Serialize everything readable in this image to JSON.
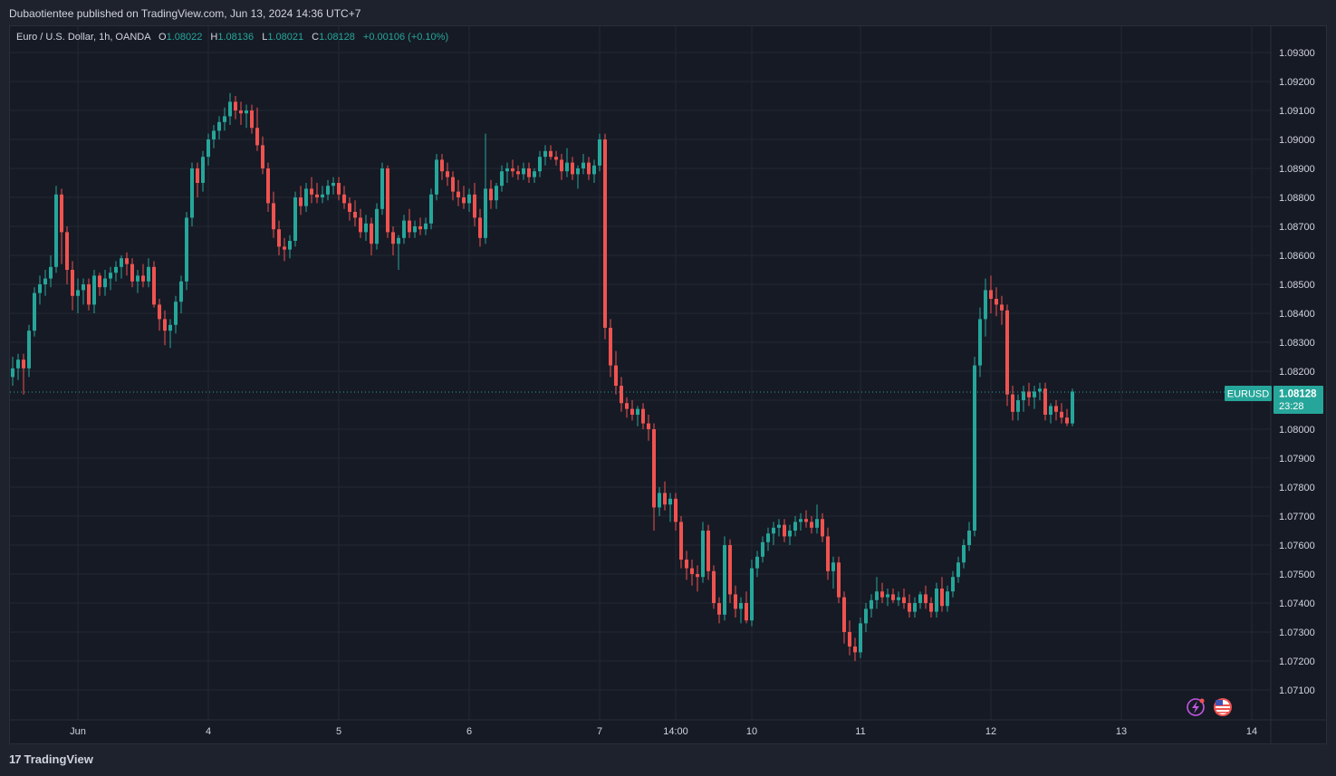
{
  "header": {
    "publisher_line": "Dubaotientee published on TradingView.com, Jun 13, 2024 14:36 UTC+7"
  },
  "legend": {
    "symbol": "Euro / U.S. Dollar, 1h, OANDA",
    "open_label": "O",
    "open": "1.08022",
    "high_label": "H",
    "high": "1.08136",
    "low_label": "L",
    "low": "1.08021",
    "close_label": "C",
    "close": "1.08128",
    "change": "+0.00106 (+0.10%)"
  },
  "price_tag": {
    "ticker": "EURUSD",
    "price": "1.08128",
    "countdown": "23:28"
  },
  "footer": {
    "brand": "TradingView"
  },
  "colors": {
    "up": "#26a69a",
    "down": "#ef5350",
    "background": "#161a25",
    "grid": "#242833",
    "text": "#d1d4dc"
  },
  "icons": [
    "lightning-icon",
    "us-flag-icon",
    "tradingview-logo-icon"
  ],
  "chart_data": {
    "type": "candlestick",
    "symbol": "EURUSD",
    "interval": "1h",
    "ylim": [
      1.07,
      1.0935
    ],
    "y_ticks": [
      "1.07100",
      "1.07200",
      "1.07300",
      "1.07400",
      "1.07500",
      "1.07600",
      "1.07700",
      "1.07800",
      "1.07900",
      "1.08000",
      "1.08100",
      "1.08200",
      "1.08300",
      "1.08400",
      "1.08500",
      "1.08600",
      "1.08700",
      "1.08800",
      "1.08900",
      "1.09000",
      "1.09100",
      "1.09200",
      "1.09300"
    ],
    "x_ticks": [
      {
        "label": "Jun",
        "bar": 12
      },
      {
        "label": "4",
        "bar": 36
      },
      {
        "label": "5",
        "bar": 60
      },
      {
        "label": "6",
        "bar": 84
      },
      {
        "label": "7",
        "bar": 108
      },
      {
        "label": "14:00",
        "bar": 122
      },
      {
        "label": "10",
        "bar": 136
      },
      {
        "label": "11",
        "bar": 156
      },
      {
        "label": "12",
        "bar": 180
      },
      {
        "label": "13",
        "bar": 204
      },
      {
        "label": "14",
        "bar": 228
      }
    ],
    "last_price": 1.08128,
    "grid": true,
    "candles": [
      [
        1.0818,
        1.0825,
        1.0815,
        1.0821
      ],
      [
        1.0821,
        1.0826,
        1.0817,
        1.0824
      ],
      [
        1.0824,
        1.0826,
        1.0812,
        1.0821
      ],
      [
        1.0821,
        1.0836,
        1.0818,
        1.0834
      ],
      [
        1.0834,
        1.0849,
        1.0832,
        1.0847
      ],
      [
        1.0847,
        1.0853,
        1.0843,
        1.085
      ],
      [
        1.085,
        1.0855,
        1.0846,
        1.0852
      ],
      [
        1.0852,
        1.086,
        1.0849,
        1.0856
      ],
      [
        1.0856,
        1.0884,
        1.0854,
        1.0881
      ],
      [
        1.0881,
        1.0883,
        1.0857,
        1.0868
      ],
      [
        1.0868,
        1.087,
        1.085,
        1.0855
      ],
      [
        1.0855,
        1.0858,
        1.0841,
        1.0846
      ],
      [
        1.0846,
        1.0852,
        1.084,
        1.0848
      ],
      [
        1.0848,
        1.0852,
        1.0843,
        1.085
      ],
      [
        1.085,
        1.0852,
        1.0841,
        1.0843
      ],
      [
        1.0843,
        1.0855,
        1.084,
        1.0853
      ],
      [
        1.0853,
        1.0854,
        1.0846,
        1.0849
      ],
      [
        1.0849,
        1.0855,
        1.0846,
        1.0852
      ],
      [
        1.0852,
        1.0856,
        1.0848,
        1.0854
      ],
      [
        1.0854,
        1.0858,
        1.0851,
        1.0856
      ],
      [
        1.0856,
        1.086,
        1.0852,
        1.0859
      ],
      [
        1.0859,
        1.0861,
        1.0853,
        1.0857
      ],
      [
        1.0857,
        1.0859,
        1.0849,
        1.0851
      ],
      [
        1.0851,
        1.0855,
        1.0847,
        1.0853
      ],
      [
        1.0853,
        1.0857,
        1.0849,
        1.0851
      ],
      [
        1.0851,
        1.0859,
        1.0849,
        1.0856
      ],
      [
        1.0856,
        1.0858,
        1.0842,
        1.0843
      ],
      [
        1.0843,
        1.0845,
        1.0834,
        1.0838
      ],
      [
        1.0838,
        1.0841,
        1.0829,
        1.0834
      ],
      [
        1.0834,
        1.0838,
        1.0828,
        1.0836
      ],
      [
        1.0836,
        1.0846,
        1.0833,
        1.0844
      ],
      [
        1.0844,
        1.0853,
        1.084,
        1.0851
      ],
      [
        1.0851,
        1.0875,
        1.0848,
        1.0873
      ],
      [
        1.0873,
        1.0892,
        1.087,
        1.089
      ],
      [
        1.089,
        1.0892,
        1.088,
        1.0885
      ],
      [
        1.0885,
        1.0896,
        1.0882,
        1.0894
      ],
      [
        1.0894,
        1.0902,
        1.0891,
        1.09
      ],
      [
        1.09,
        1.0905,
        1.0897,
        1.0903
      ],
      [
        1.0903,
        1.0908,
        1.09,
        1.0906
      ],
      [
        1.0906,
        1.0911,
        1.0903,
        1.0908
      ],
      [
        1.0908,
        1.0916,
        1.0905,
        1.0913
      ],
      [
        1.0913,
        1.0915,
        1.0907,
        1.091
      ],
      [
        1.091,
        1.0913,
        1.0905,
        1.0909
      ],
      [
        1.0909,
        1.0912,
        1.0904,
        1.091
      ],
      [
        1.091,
        1.0912,
        1.0902,
        1.0904
      ],
      [
        1.0904,
        1.0911,
        1.0896,
        1.0898
      ],
      [
        1.0898,
        1.0901,
        1.0888,
        1.089
      ],
      [
        1.089,
        1.0892,
        1.0875,
        1.0878
      ],
      [
        1.0878,
        1.0882,
        1.0866,
        1.0869
      ],
      [
        1.0869,
        1.0872,
        1.086,
        1.0863
      ],
      [
        1.0863,
        1.0866,
        1.0858,
        1.0862
      ],
      [
        1.0862,
        1.0867,
        1.0859,
        1.0865
      ],
      [
        1.0865,
        1.0882,
        1.0863,
        1.088
      ],
      [
        1.088,
        1.0884,
        1.0874,
        1.0877
      ],
      [
        1.0877,
        1.0885,
        1.0875,
        1.0883
      ],
      [
        1.0883,
        1.0887,
        1.0878,
        1.0881
      ],
      [
        1.0881,
        1.0885,
        1.0878,
        1.088
      ],
      [
        1.088,
        1.0884,
        1.0878,
        1.0881
      ],
      [
        1.0881,
        1.0886,
        1.0879,
        1.0884
      ],
      [
        1.0884,
        1.0887,
        1.0881,
        1.0885
      ],
      [
        1.0885,
        1.0887,
        1.0879,
        1.0881
      ],
      [
        1.0881,
        1.0884,
        1.0876,
        1.0878
      ],
      [
        1.0878,
        1.088,
        1.0872,
        1.0875
      ],
      [
        1.0875,
        1.0879,
        1.087,
        1.0873
      ],
      [
        1.0873,
        1.0876,
        1.0866,
        1.0868
      ],
      [
        1.0868,
        1.0874,
        1.0865,
        1.0871
      ],
      [
        1.0871,
        1.0873,
        1.086,
        1.0864
      ],
      [
        1.0864,
        1.0878,
        1.0862,
        1.0876
      ],
      [
        1.0876,
        1.0892,
        1.0874,
        1.089
      ],
      [
        1.089,
        1.0891,
        1.0866,
        1.0868
      ],
      [
        1.0868,
        1.087,
        1.086,
        1.0864
      ],
      [
        1.0864,
        1.0867,
        1.0855,
        1.0866
      ],
      [
        1.0866,
        1.0874,
        1.0864,
        1.0872
      ],
      [
        1.0872,
        1.0876,
        1.0866,
        1.0868
      ],
      [
        1.0868,
        1.0872,
        1.0866,
        1.087
      ],
      [
        1.087,
        1.0873,
        1.0867,
        1.0869
      ],
      [
        1.0869,
        1.0873,
        1.0867,
        1.0871
      ],
      [
        1.0871,
        1.0883,
        1.0869,
        1.0881
      ],
      [
        1.0881,
        1.0895,
        1.0879,
        1.0893
      ],
      [
        1.0893,
        1.0895,
        1.0886,
        1.0889
      ],
      [
        1.0889,
        1.0892,
        1.0884,
        1.0887
      ],
      [
        1.0887,
        1.0889,
        1.0879,
        1.0882
      ],
      [
        1.0882,
        1.0886,
        1.0877,
        1.088
      ],
      [
        1.088,
        1.0884,
        1.0876,
        1.0878
      ],
      [
        1.0878,
        1.0883,
        1.0875,
        1.0881
      ],
      [
        1.0881,
        1.0885,
        1.087,
        1.0873
      ],
      [
        1.0873,
        1.0876,
        1.0863,
        1.0866
      ],
      [
        1.0866,
        1.0902,
        1.0864,
        1.0883
      ],
      [
        1.0883,
        1.0886,
        1.0876,
        1.0879
      ],
      [
        1.0879,
        1.0885,
        1.0876,
        1.0884
      ],
      [
        1.0884,
        1.0891,
        1.0882,
        1.0889
      ],
      [
        1.0889,
        1.0892,
        1.0885,
        1.089
      ],
      [
        1.089,
        1.0893,
        1.0887,
        1.0889
      ],
      [
        1.0889,
        1.0891,
        1.0886,
        1.0888
      ],
      [
        1.0888,
        1.0892,
        1.0886,
        1.089
      ],
      [
        1.089,
        1.0892,
        1.0885,
        1.0887
      ],
      [
        1.0887,
        1.089,
        1.0885,
        1.0889
      ],
      [
        1.0889,
        1.0896,
        1.0887,
        1.0894
      ],
      [
        1.0894,
        1.0898,
        1.0891,
        1.0896
      ],
      [
        1.0896,
        1.0898,
        1.0893,
        1.0894
      ],
      [
        1.0894,
        1.0896,
        1.0891,
        1.0893
      ],
      [
        1.0893,
        1.0895,
        1.0886,
        1.0889
      ],
      [
        1.0889,
        1.0897,
        1.0887,
        1.0892
      ],
      [
        1.0892,
        1.0894,
        1.0886,
        1.0888
      ],
      [
        1.0888,
        1.0891,
        1.0883,
        1.089
      ],
      [
        1.089,
        1.0895,
        1.0888,
        1.0892
      ],
      [
        1.0892,
        1.0894,
        1.0886,
        1.0888
      ],
      [
        1.0888,
        1.0893,
        1.0885,
        1.0891
      ],
      [
        1.0891,
        1.0902,
        1.0889,
        1.09
      ],
      [
        1.09,
        1.0902,
        1.0831,
        1.0835
      ],
      [
        1.0835,
        1.0838,
        1.0818,
        1.0822
      ],
      [
        1.0822,
        1.0827,
        1.0812,
        1.0815
      ],
      [
        1.0815,
        1.0818,
        1.0806,
        1.0809
      ],
      [
        1.0809,
        1.0811,
        1.0804,
        1.0807
      ],
      [
        1.0807,
        1.081,
        1.0803,
        1.0805
      ],
      [
        1.0805,
        1.0808,
        1.0801,
        1.0807
      ],
      [
        1.0807,
        1.0809,
        1.08,
        1.0802
      ],
      [
        1.0802,
        1.0805,
        1.0796,
        1.08
      ],
      [
        1.08,
        1.0802,
        1.0765,
        1.0773
      ],
      [
        1.0773,
        1.078,
        1.077,
        1.0778
      ],
      [
        1.0778,
        1.0782,
        1.0772,
        1.0774
      ],
      [
        1.0774,
        1.0778,
        1.0768,
        1.0776
      ],
      [
        1.0776,
        1.0778,
        1.0765,
        1.0768
      ],
      [
        1.0768,
        1.077,
        1.0752,
        1.0755
      ],
      [
        1.0755,
        1.0758,
        1.0748,
        1.0752
      ],
      [
        1.0752,
        1.0755,
        1.0746,
        1.075
      ],
      [
        1.075,
        1.0753,
        1.0744,
        1.0749
      ],
      [
        1.0749,
        1.0768,
        1.0747,
        1.0765
      ],
      [
        1.0765,
        1.0767,
        1.0748,
        1.0751
      ],
      [
        1.0751,
        1.0753,
        1.0738,
        1.074
      ],
      [
        1.074,
        1.0742,
        1.0733,
        1.0736
      ],
      [
        1.0736,
        1.0763,
        1.0734,
        1.076
      ],
      [
        1.076,
        1.0762,
        1.074,
        1.0743
      ],
      [
        1.0743,
        1.0746,
        1.0735,
        1.0738
      ],
      [
        1.0738,
        1.0742,
        1.0733,
        1.074
      ],
      [
        1.074,
        1.0744,
        1.0733,
        1.0734
      ],
      [
        1.0734,
        1.0755,
        1.0732,
        1.0752
      ],
      [
        1.0752,
        1.0758,
        1.0749,
        1.0756
      ],
      [
        1.0756,
        1.0763,
        1.0754,
        1.0761
      ],
      [
        1.0761,
        1.0766,
        1.0758,
        1.0764
      ],
      [
        1.0764,
        1.0768,
        1.076,
        1.0766
      ],
      [
        1.0766,
        1.0769,
        1.0763,
        1.0767
      ],
      [
        1.0767,
        1.0769,
        1.0761,
        1.0763
      ],
      [
        1.0763,
        1.0767,
        1.076,
        1.0765
      ],
      [
        1.0765,
        1.077,
        1.0763,
        1.0768
      ],
      [
        1.0768,
        1.0771,
        1.0765,
        1.0769
      ],
      [
        1.0769,
        1.0772,
        1.0766,
        1.0768
      ],
      [
        1.0768,
        1.077,
        1.0764,
        1.0766
      ],
      [
        1.0766,
        1.0774,
        1.0764,
        1.0769
      ],
      [
        1.0769,
        1.0771,
        1.0761,
        1.0763
      ],
      [
        1.0763,
        1.0766,
        1.0748,
        1.0751
      ],
      [
        1.0751,
        1.0756,
        1.0745,
        1.0754
      ],
      [
        1.0754,
        1.0756,
        1.074,
        1.0742
      ],
      [
        1.0742,
        1.0744,
        1.0726,
        1.073
      ],
      [
        1.073,
        1.0734,
        1.0722,
        1.0725
      ],
      [
        1.0725,
        1.0728,
        1.072,
        1.0723
      ],
      [
        1.0723,
        1.0735,
        1.0721,
        1.0733
      ],
      [
        1.0733,
        1.074,
        1.073,
        1.0738
      ],
      [
        1.0738,
        1.0743,
        1.0735,
        1.0741
      ],
      [
        1.0741,
        1.0749,
        1.0738,
        1.0744
      ],
      [
        1.0744,
        1.0747,
        1.074,
        1.0742
      ],
      [
        1.0742,
        1.0745,
        1.0739,
        1.0743
      ],
      [
        1.0743,
        1.0745,
        1.074,
        1.0741
      ],
      [
        1.0741,
        1.0744,
        1.0739,
        1.0742
      ],
      [
        1.0742,
        1.0745,
        1.0738,
        1.074
      ],
      [
        1.074,
        1.0743,
        1.0735,
        1.0737
      ],
      [
        1.0737,
        1.0742,
        1.0735,
        1.074
      ],
      [
        1.074,
        1.0744,
        1.0738,
        1.0743
      ],
      [
        1.0743,
        1.0746,
        1.0738,
        1.074
      ],
      [
        1.074,
        1.0742,
        1.0735,
        1.0737
      ],
      [
        1.0737,
        1.0747,
        1.0735,
        1.0745
      ],
      [
        1.0745,
        1.0749,
        1.0737,
        1.0739
      ],
      [
        1.0739,
        1.0746,
        1.0737,
        1.0744
      ],
      [
        1.0744,
        1.0751,
        1.0742,
        1.0749
      ],
      [
        1.0749,
        1.0756,
        1.0747,
        1.0754
      ],
      [
        1.0754,
        1.0762,
        1.0752,
        1.076
      ],
      [
        1.076,
        1.0768,
        1.0758,
        1.0765
      ],
      [
        1.0765,
        1.0825,
        1.0763,
        1.0822
      ],
      [
        1.0822,
        1.0842,
        1.0818,
        1.0838
      ],
      [
        1.0838,
        1.0852,
        1.0832,
        1.0848
      ],
      [
        1.0848,
        1.0853,
        1.084,
        1.0845
      ],
      [
        1.0845,
        1.0849,
        1.0839,
        1.0843
      ],
      [
        1.0843,
        1.0846,
        1.0836,
        1.0841
      ],
      [
        1.0841,
        1.0843,
        1.0808,
        1.0812
      ],
      [
        1.0812,
        1.0815,
        1.0803,
        1.0806
      ],
      [
        1.0806,
        1.0812,
        1.0803,
        1.081
      ],
      [
        1.081,
        1.0815,
        1.0806,
        1.0813
      ],
      [
        1.0813,
        1.0816,
        1.0808,
        1.0811
      ],
      [
        1.0811,
        1.0815,
        1.0807,
        1.0813
      ],
      [
        1.0813,
        1.0816,
        1.081,
        1.0814
      ],
      [
        1.0814,
        1.0816,
        1.0803,
        1.0805
      ],
      [
        1.0805,
        1.0809,
        1.0802,
        1.0808
      ],
      [
        1.0808,
        1.081,
        1.0803,
        1.0806
      ],
      [
        1.0806,
        1.0809,
        1.0802,
        1.0804
      ],
      [
        1.0804,
        1.0807,
        1.0801,
        1.0802
      ],
      [
        1.0802,
        1.0814,
        1.0801,
        1.0813
      ]
    ]
  }
}
